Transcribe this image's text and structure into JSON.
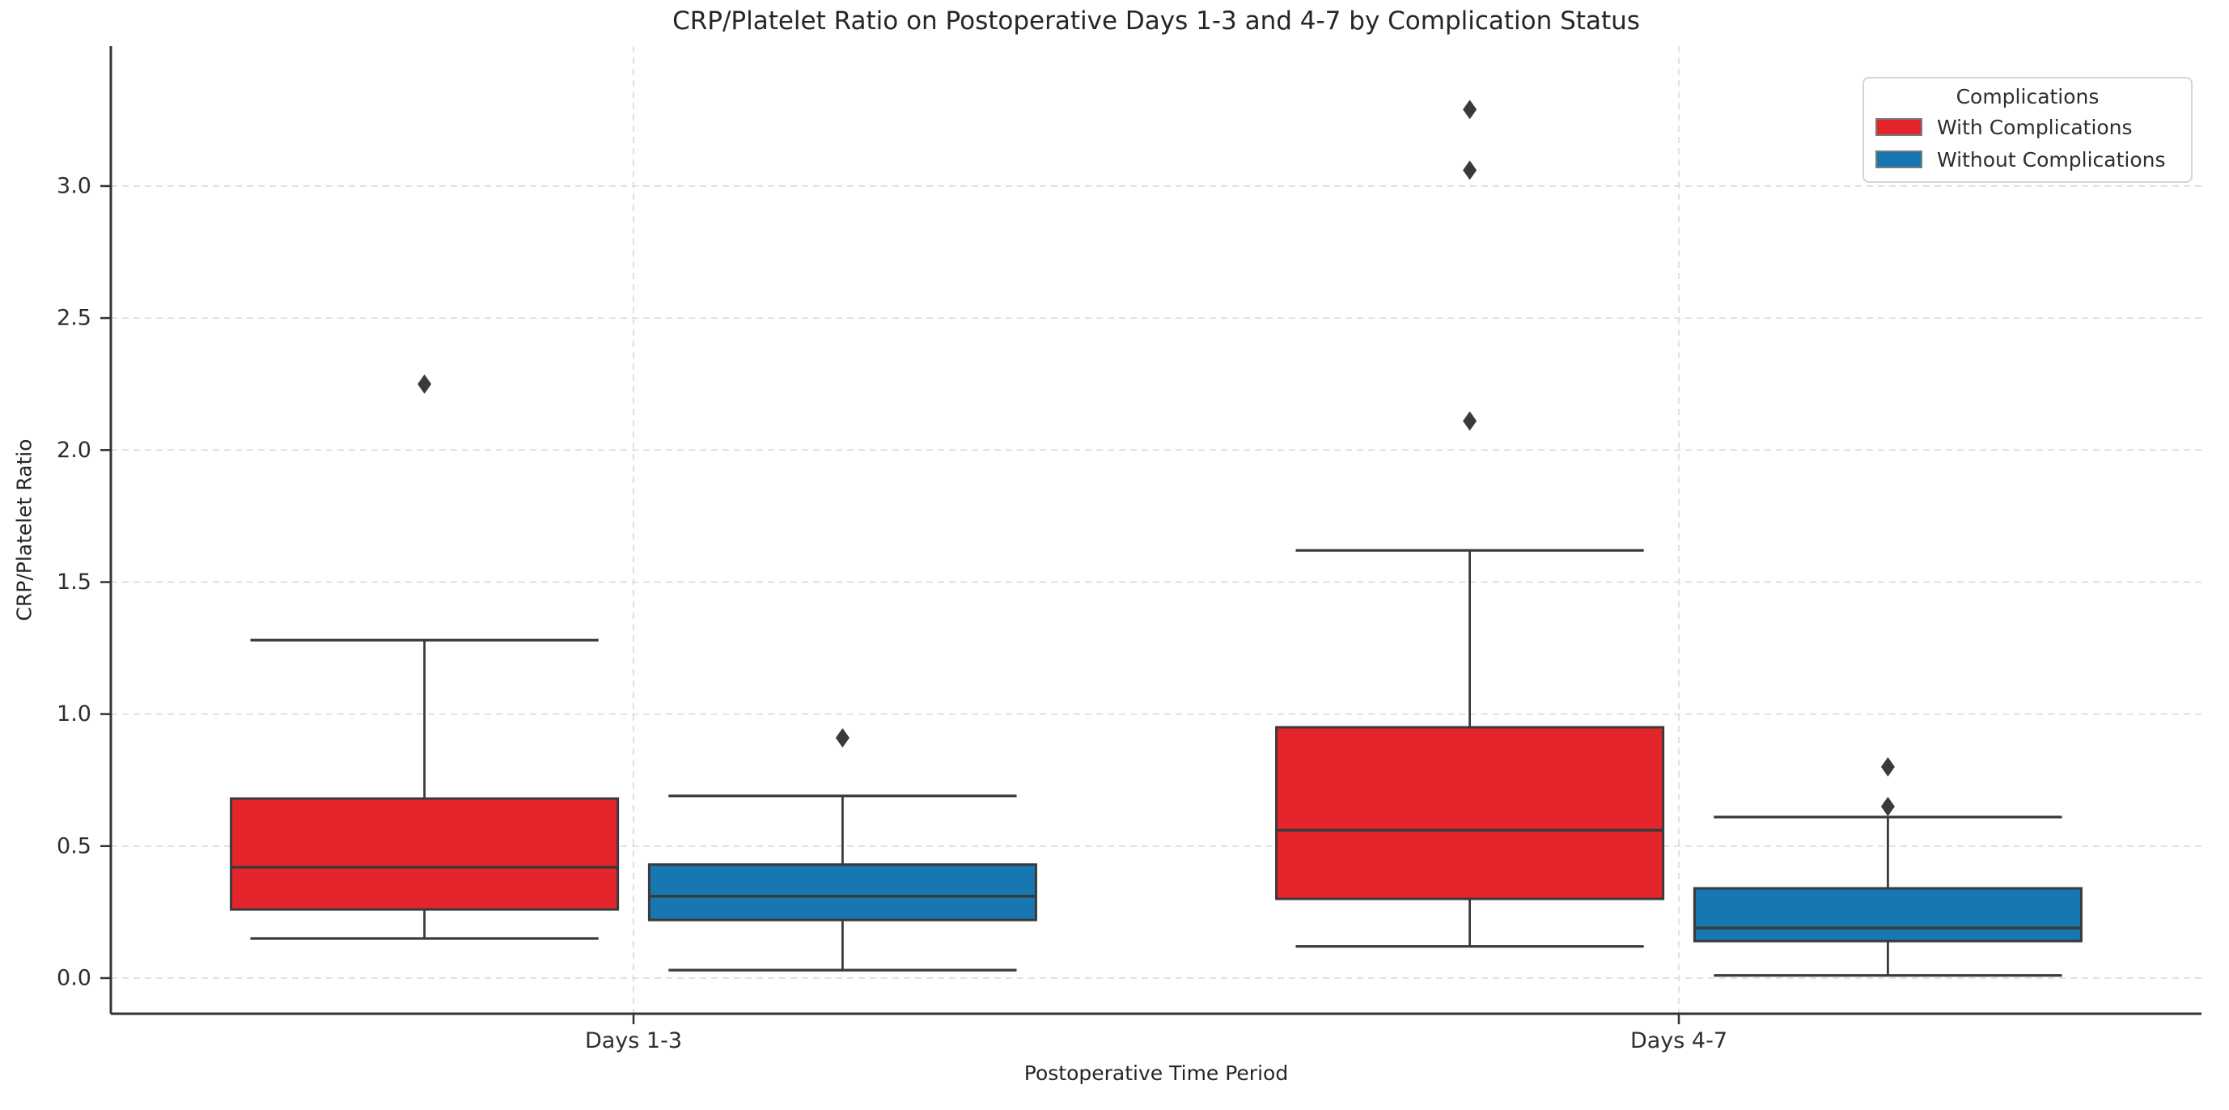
{
  "title": "CRP/Platelet Ratio on Postoperative Days 1-3 and 4-7 by Complication Status",
  "xlabel": "Postoperative Time Period",
  "ylabel": "CRP/Platelet Ratio",
  "legend": {
    "title": "Complications",
    "items": [
      {
        "label": "With Complications",
        "color": "#e4262c"
      },
      {
        "label": "Without Complications",
        "color": "#1677b1"
      }
    ]
  },
  "axes": {
    "x_ticks": [
      "Days 1-3",
      "Days 4-7"
    ],
    "y_ticks": [
      {
        "label": "0.0",
        "value": 0.0
      },
      {
        "label": "0.5",
        "value": 0.5
      },
      {
        "label": "1.0",
        "value": 1.0
      },
      {
        "label": "1.5",
        "value": 1.5
      },
      {
        "label": "2.0",
        "value": 2.0
      },
      {
        "label": "2.5",
        "value": 2.5
      },
      {
        "label": "3.0",
        "value": 3.0
      }
    ],
    "ylim": [
      -0.135,
      3.53
    ],
    "grid": "dashed horizontal and vertical gridlines",
    "legend_position": "upper right"
  },
  "chart_data": {
    "type": "box",
    "title": "CRP/Platelet Ratio on Postoperative Days 1-3 and 4-7 by Complication Status",
    "xlabel": "Postoperative Time Period",
    "ylabel": "CRP/Platelet Ratio",
    "categories": [
      "Days 1-3",
      "Days 4-7"
    ],
    "series": [
      {
        "name": "With Complications",
        "color": "#e4262c",
        "boxes": [
          {
            "category": "Days 1-3",
            "whisker_low": 0.15,
            "q1": 0.26,
            "median": 0.42,
            "q3": 0.68,
            "whisker_high": 1.28,
            "outliers": [
              2.25
            ]
          },
          {
            "category": "Days 4-7",
            "whisker_low": 0.12,
            "q1": 0.3,
            "median": 0.56,
            "q3": 0.95,
            "whisker_high": 1.62,
            "outliers": [
              2.11,
              3.06,
              3.29
            ]
          }
        ]
      },
      {
        "name": "Without Complications",
        "color": "#1677b1",
        "boxes": [
          {
            "category": "Days 1-3",
            "whisker_low": 0.03,
            "q1": 0.22,
            "median": 0.31,
            "q3": 0.43,
            "whisker_high": 0.69,
            "outliers": [
              0.91
            ]
          },
          {
            "category": "Days 4-7",
            "whisker_low": 0.01,
            "q1": 0.14,
            "median": 0.19,
            "q3": 0.34,
            "whisker_high": 0.61,
            "outliers": [
              0.65,
              0.8
            ]
          }
        ]
      }
    ]
  },
  "style": {
    "edge_color": "#3a3a3a",
    "grid_color": "#dadada",
    "spine_color": "#333333",
    "tick_text_color": "#2e2e2e",
    "background": "#ffffff",
    "outlier_marker": "diamond"
  }
}
